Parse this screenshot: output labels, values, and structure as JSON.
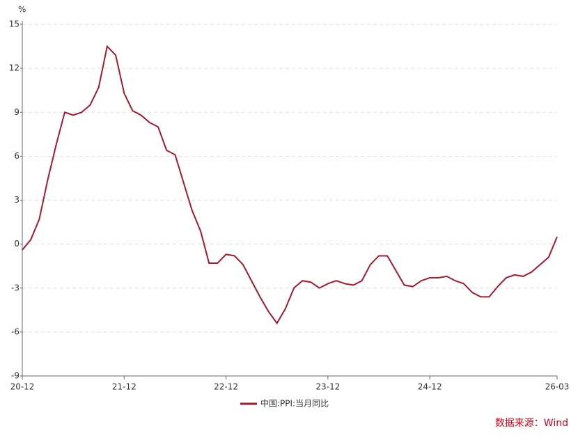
{
  "chart_data": {
    "type": "line",
    "y_label": "%",
    "categories": [
      "20-12",
      null,
      null,
      null,
      null,
      null,
      null,
      null,
      null,
      null,
      null,
      null,
      "21-12",
      null,
      null,
      null,
      null,
      null,
      null,
      null,
      null,
      null,
      null,
      null,
      "22-12",
      null,
      null,
      null,
      null,
      null,
      null,
      null,
      null,
      null,
      null,
      null,
      "23-12",
      null,
      null,
      null,
      null,
      null,
      null,
      null,
      null,
      null,
      null,
      null,
      "24-12",
      null,
      null,
      null,
      null,
      null,
      null,
      null,
      null,
      null,
      null,
      null,
      null,
      null,
      null,
      "26-03"
    ],
    "series": [
      {
        "name": "中国:PPI:当月同比",
        "color": "#a6192e",
        "values": [
          -0.4,
          0.3,
          1.7,
          4.4,
          6.8,
          9.0,
          8.8,
          9.0,
          9.5,
          10.7,
          13.5,
          12.9,
          10.3,
          9.1,
          8.8,
          8.3,
          8.0,
          6.4,
          6.1,
          4.2,
          2.3,
          0.9,
          -1.3,
          -1.3,
          -0.7,
          -0.8,
          -1.4,
          -2.5,
          -3.6,
          -4.6,
          -5.4,
          -4.4,
          -3.0,
          -2.5,
          -2.6,
          -3.0,
          -2.7,
          -2.5,
          -2.7,
          -2.8,
          -2.5,
          -1.4,
          -0.8,
          -0.8,
          -1.8,
          -2.8,
          -2.9,
          -2.5,
          -2.3,
          -2.3,
          -2.2,
          -2.5,
          -2.7,
          -3.3,
          -3.6,
          -3.6,
          -2.9,
          -2.3,
          -2.1,
          -2.2,
          -1.9,
          -1.4,
          -0.9,
          0.5
        ]
      }
    ],
    "ylim": [
      -9,
      15
    ],
    "yticks": [
      -9,
      -6,
      -3,
      0,
      3,
      6,
      9,
      12,
      15
    ],
    "grid": true,
    "legend": "bottom",
    "source": "数据来源：Wind"
  }
}
